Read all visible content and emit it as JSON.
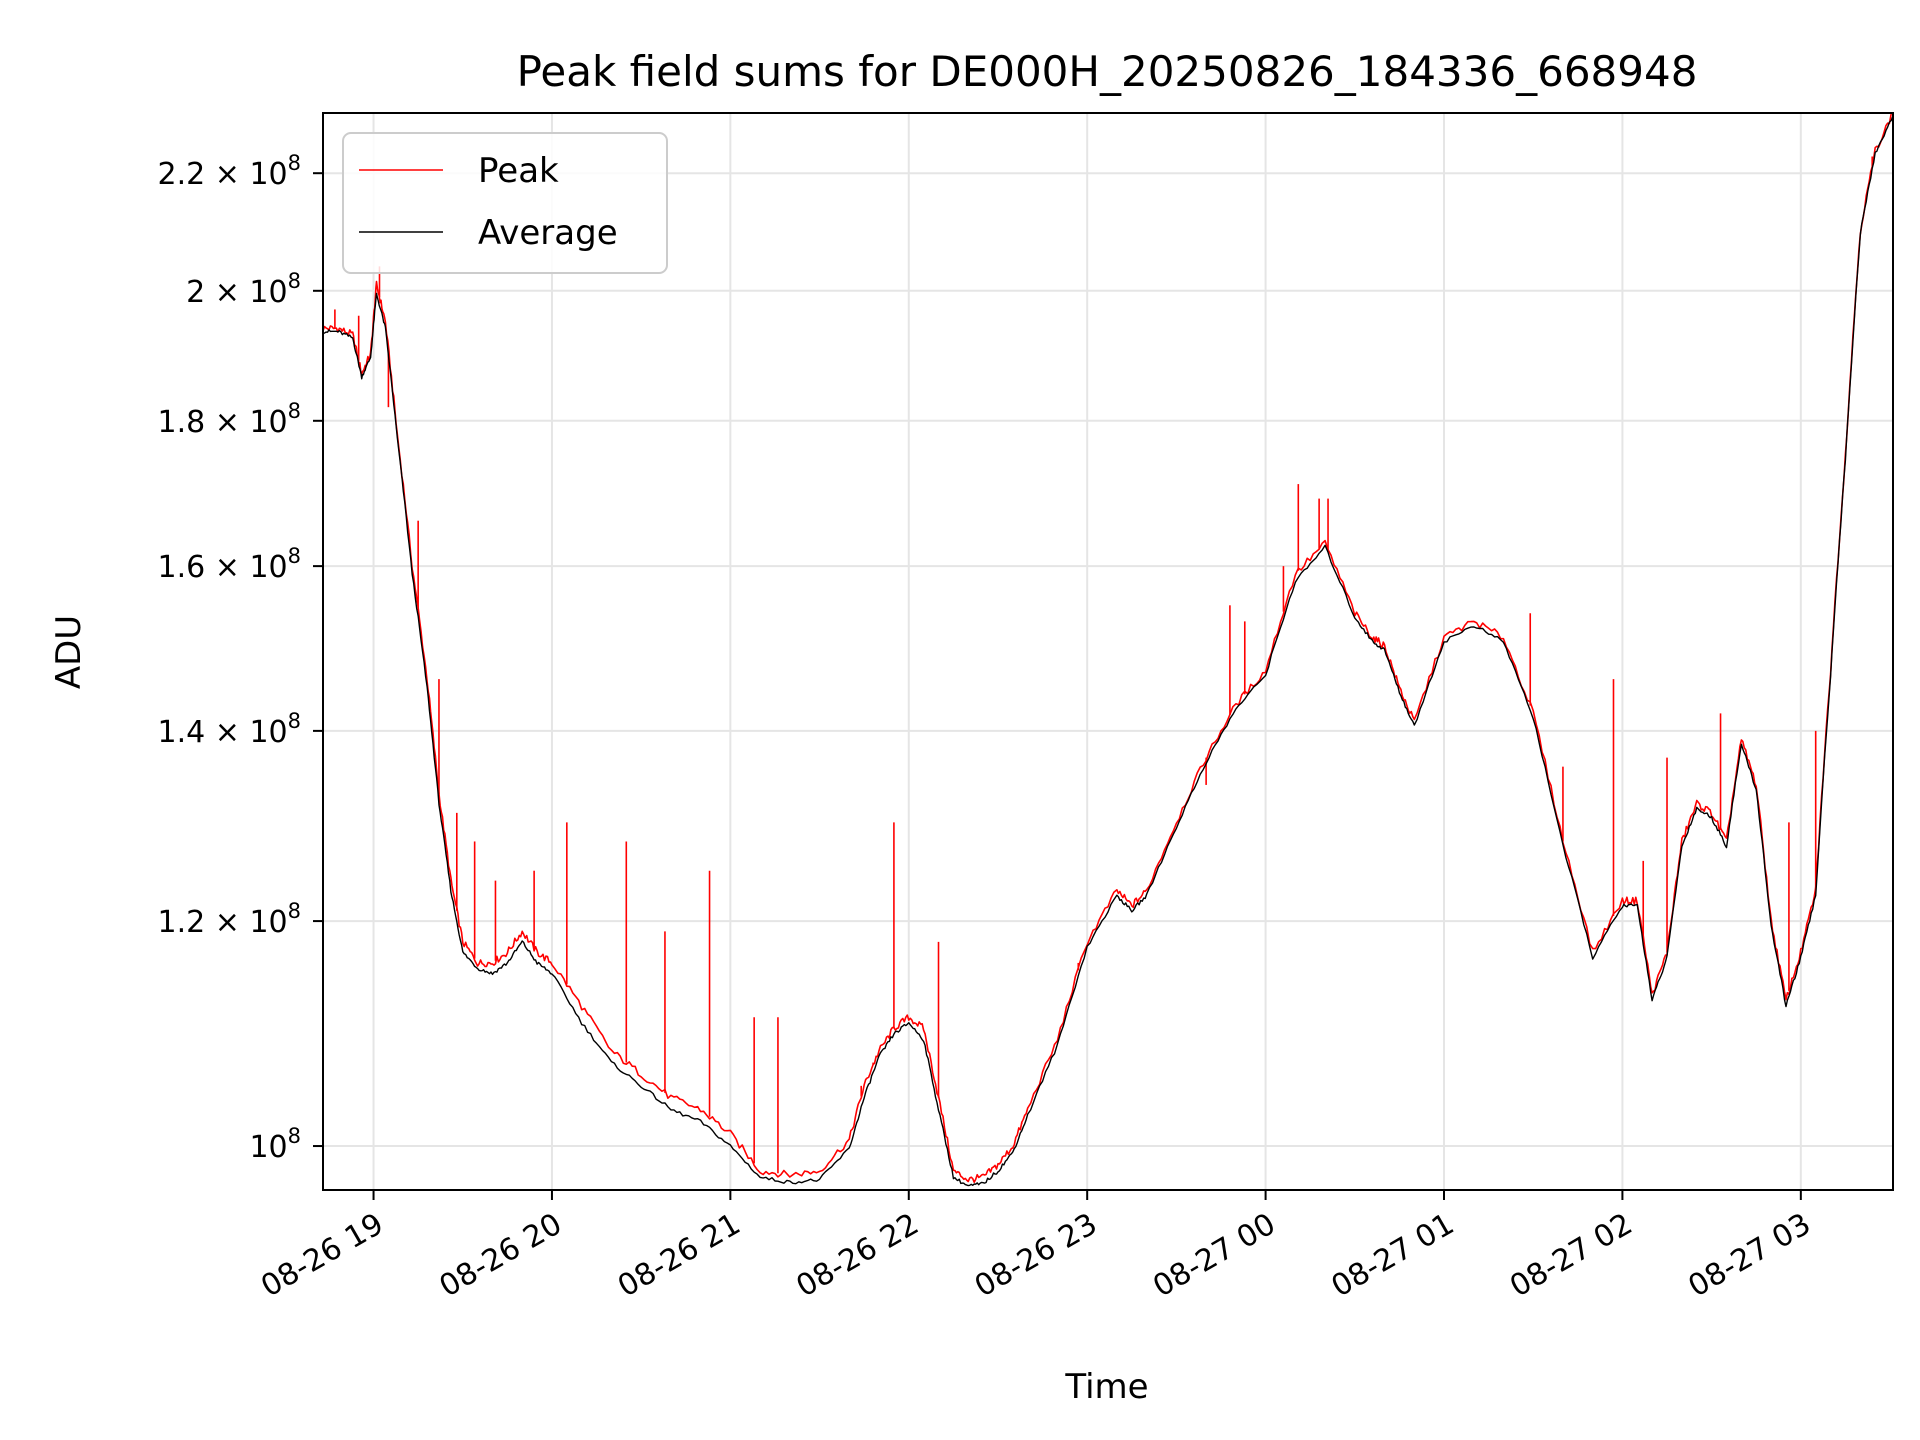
{
  "chart_data": {
    "type": "line",
    "title": "Peak field sums for DE000H_20250826_184336_668948",
    "xlabel": "Time",
    "ylabel": "ADU",
    "yscale": "log",
    "grid": true,
    "legend_position": "top-left",
    "xlim": [
      "2025-08-26 18:43",
      "2025-08-27 03:31"
    ],
    "ylim": [
      96500000,
      231000000
    ],
    "x_ticks": [
      "08-26 19",
      "08-26 20",
      "08-26 21",
      "08-26 22",
      "08-26 23",
      "08-27 00",
      "08-27 01",
      "08-27 02",
      "08-27 03"
    ],
    "y_ticks": [
      {
        "value": 100000000,
        "label": "10^8"
      },
      {
        "value": 120000000,
        "label": "1.2 × 10^8"
      },
      {
        "value": 140000000,
        "label": "1.4 × 10^8"
      },
      {
        "value": 160000000,
        "label": "1.6 × 10^8"
      },
      {
        "value": 180000000,
        "label": "1.8 × 10^8"
      },
      {
        "value": 200000000,
        "label": "2 × 10^8"
      },
      {
        "value": 220000000,
        "label": "2.2 × 10^8"
      }
    ],
    "x": [
      "18:43",
      "18:48",
      "18:53",
      "18:56",
      "18:59",
      "19:01",
      "19:04",
      "19:08",
      "19:13",
      "19:18",
      "19:22",
      "19:26",
      "19:30",
      "19:35",
      "19:40",
      "19:45",
      "19:50",
      "19:55",
      "20:00",
      "20:10",
      "20:20",
      "20:30",
      "20:40",
      "20:50",
      "21:00",
      "21:10",
      "21:20",
      "21:30",
      "21:40",
      "21:45",
      "21:50",
      "21:55",
      "22:00",
      "22:05",
      "22:10",
      "22:15",
      "22:20",
      "22:25",
      "22:30",
      "22:35",
      "22:40",
      "22:50",
      "23:00",
      "23:10",
      "23:15",
      "23:20",
      "23:30",
      "23:40",
      "23:50",
      "00:00",
      "00:10",
      "00:20",
      "00:30",
      "00:36",
      "00:40",
      "00:45",
      "00:50",
      "01:00",
      "01:10",
      "01:20",
      "01:30",
      "01:40",
      "01:50",
      "02:00",
      "02:05",
      "02:10",
      "02:15",
      "02:20",
      "02:25",
      "02:30",
      "02:35",
      "02:40",
      "02:45",
      "02:50",
      "02:55",
      "03:00",
      "03:05",
      "03:10",
      "03:15",
      "03:20",
      "03:25",
      "03:31"
    ],
    "series": [
      {
        "name": "Peak",
        "color": "#ff0000",
        "values": [
          194000000,
          194000000,
          193000000,
          187000000,
          190000000,
          201000000,
          195000000,
          178000000,
          160000000,
          146000000,
          133000000,
          124000000,
          118000000,
          116000000,
          116000000,
          117000000,
          119000000,
          117000000,
          116000000,
          112000000,
          108000000,
          106000000,
          104000000,
          103000000,
          101000000,
          98000000,
          97700000,
          98000000,
          100500000,
          105000000,
          108000000,
          110000000,
          111000000,
          110000000,
          104000000,
          98000000,
          97300000,
          97500000,
          98500000,
          100000000,
          103000000,
          109000000,
          118000000,
          123000000,
          121500000,
          123000000,
          130000000,
          137000000,
          143000000,
          147000000,
          159000000,
          163000000,
          154000000,
          151000000,
          150000000,
          145000000,
          141000000,
          151000000,
          153000000,
          151000000,
          142000000,
          128000000,
          117000000,
          122000000,
          122000000,
          113000000,
          117000000,
          128000000,
          132000000,
          131000000,
          128000000,
          139000000,
          134000000,
          120000000,
          112500000,
          117000000,
          123000000,
          147000000,
          175000000,
          210000000,
          224000000,
          231000000
        ]
      },
      {
        "name": "Average",
        "color": "#000000",
        "values": [
          193500000,
          193500000,
          192500000,
          186500000,
          189500000,
          199500000,
          194000000,
          177500000,
          159000000,
          145000000,
          132000000,
          123000000,
          117000000,
          115500000,
          115000000,
          116000000,
          118000000,
          116000000,
          115000000,
          110500000,
          107000000,
          105000000,
          103000000,
          102000000,
          100000000,
          97500000,
          97100000,
          97300000,
          99800000,
          104000000,
          107500000,
          109500000,
          110500000,
          109000000,
          103000000,
          97500000,
          96800000,
          97000000,
          98000000,
          99500000,
          102500000,
          108500000,
          117500000,
          122500000,
          121000000,
          122500000,
          129500000,
          136500000,
          142500000,
          146500000,
          158000000,
          162500000,
          153500000,
          150500000,
          149500000,
          144500000,
          140500000,
          150500000,
          152500000,
          150500000,
          141500000,
          127500000,
          116500000,
          121500000,
          121500000,
          112500000,
          116500000,
          127500000,
          131500000,
          130500000,
          127500000,
          138500000,
          133500000,
          119500000,
          112000000,
          116500000,
          122500000,
          146500000,
          174500000,
          209500000,
          223500000,
          230500000
        ]
      }
    ],
    "spikes": {
      "series": "Peak",
      "points": [
        {
          "x": "18:47",
          "y": 197000000
        },
        {
          "x": "18:55",
          "y": 196000000
        },
        {
          "x": "19:02",
          "y": 204000000
        },
        {
          "x": "19:05",
          "y": 182000000
        },
        {
          "x": "19:15",
          "y": 166000000
        },
        {
          "x": "19:22",
          "y": 146000000
        },
        {
          "x": "19:28",
          "y": 131000000
        },
        {
          "x": "19:34",
          "y": 128000000
        },
        {
          "x": "19:41",
          "y": 124000000
        },
        {
          "x": "19:54",
          "y": 125000000
        },
        {
          "x": "20:05",
          "y": 130000000
        },
        {
          "x": "20:25",
          "y": 128000000
        },
        {
          "x": "20:38",
          "y": 119000000
        },
        {
          "x": "20:53",
          "y": 125000000
        },
        {
          "x": "21:08",
          "y": 111000000
        },
        {
          "x": "21:16",
          "y": 111000000
        },
        {
          "x": "21:44",
          "y": 105000000
        },
        {
          "x": "21:48",
          "y": 107000000
        },
        {
          "x": "21:55",
          "y": 130000000
        },
        {
          "x": "22:10",
          "y": 118000000
        },
        {
          "x": "22:38",
          "y": 102000000
        },
        {
          "x": "22:57",
          "y": 116000000
        },
        {
          "x": "23:40",
          "y": 134000000
        },
        {
          "x": "23:48",
          "y": 155000000
        },
        {
          "x": "23:53",
          "y": 153000000
        },
        {
          "x": "00:06",
          "y": 160000000
        },
        {
          "x": "00:11",
          "y": 171000000
        },
        {
          "x": "00:18",
          "y": 169000000
        },
        {
          "x": "00:21",
          "y": 169000000
        },
        {
          "x": "01:29",
          "y": 154000000
        },
        {
          "x": "01:40",
          "y": 136000000
        },
        {
          "x": "01:57",
          "y": 146000000
        },
        {
          "x": "02:07",
          "y": 126000000
        },
        {
          "x": "02:15",
          "y": 137000000
        },
        {
          "x": "02:33",
          "y": 142000000
        },
        {
          "x": "02:56",
          "y": 130000000
        },
        {
          "x": "03:05",
          "y": 140000000
        },
        {
          "x": "03:24",
          "y": 223000000
        }
      ]
    }
  }
}
